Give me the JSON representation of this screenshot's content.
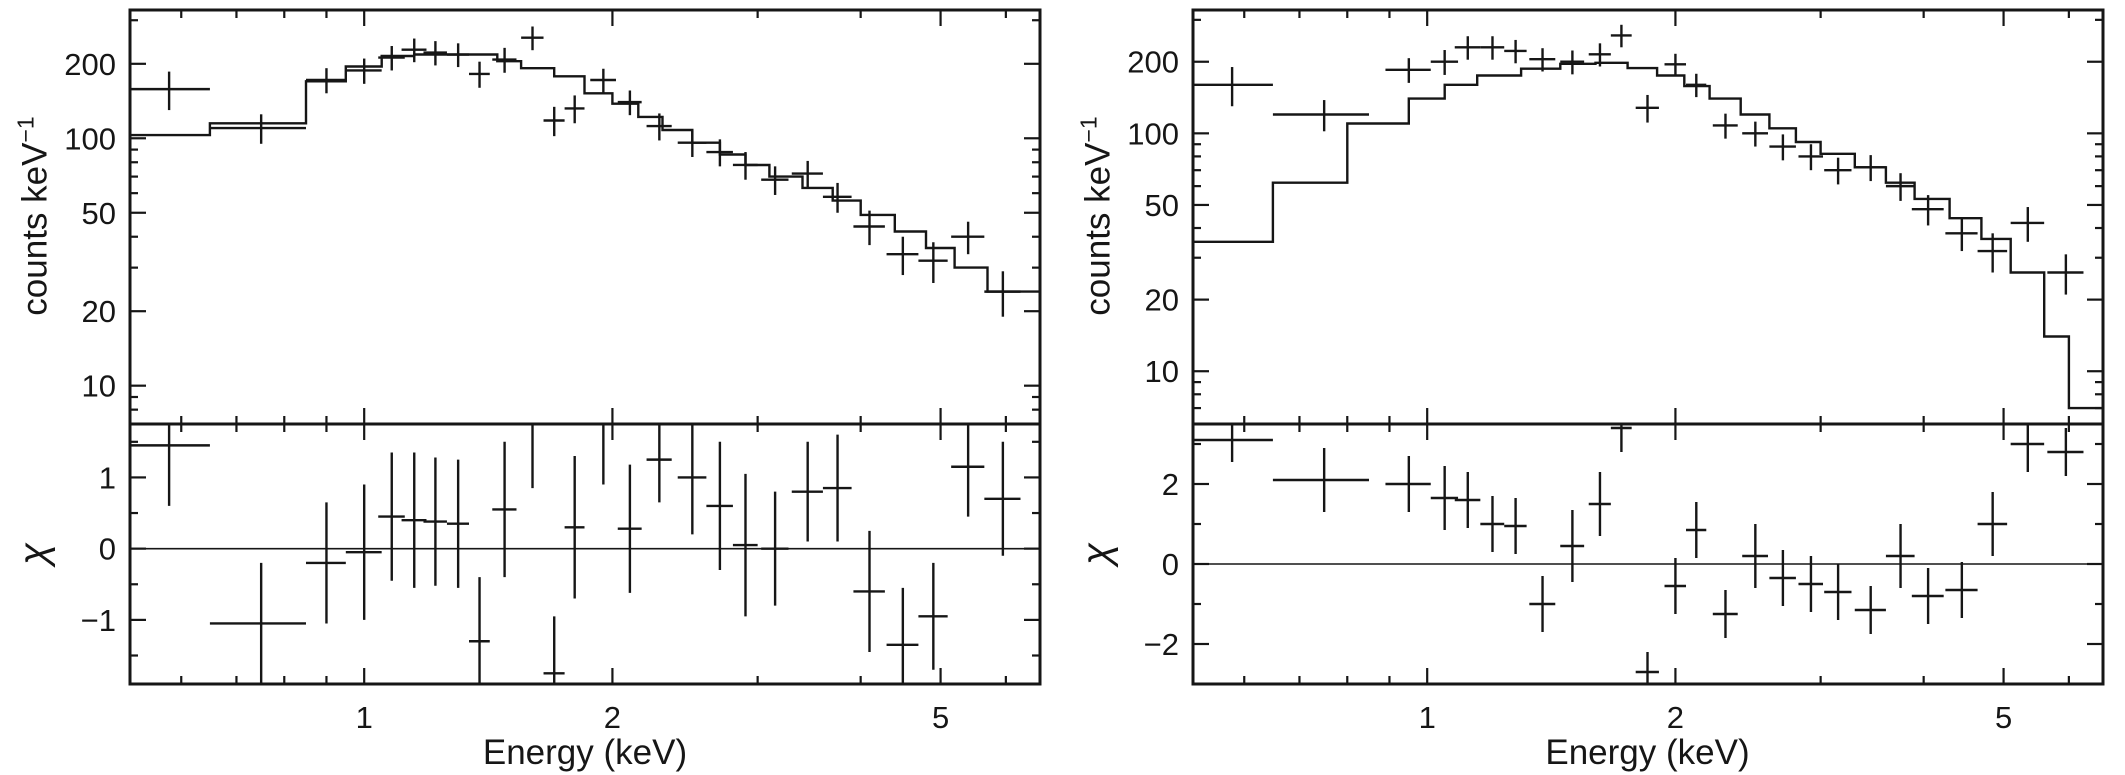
{
  "figure": {
    "background": "#ffffff",
    "ink_color": "#161616"
  },
  "chart_data": [
    {
      "id": "left-panel",
      "type": "line",
      "title": "",
      "xlabel": "Energy (keV)",
      "xscale": "log",
      "xlim": [
        0.52,
        6.6
      ],
      "xticks": [
        1,
        2,
        5
      ],
      "spectrum": {
        "ylabel_base": "counts keV",
        "ylabel_sup": "−1",
        "yscale": "log",
        "ylim": [
          7,
          330
        ],
        "yticks": [
          10,
          20,
          50,
          100,
          200
        ],
        "model": {
          "edges": [
            0.52,
            0.65,
            0.85,
            0.95,
            1.05,
            1.15,
            1.45,
            1.55,
            1.7,
            1.85,
            2.0,
            2.15,
            2.3,
            2.5,
            2.7,
            2.9,
            3.1,
            3.4,
            3.7,
            4.0,
            4.4,
            4.8,
            5.2,
            5.7,
            6.6
          ],
          "counts": [
            103,
            115,
            170,
            195,
            215,
            218,
            205,
            192,
            178,
            152,
            138,
            122,
            108,
            96,
            86,
            78,
            70,
            63,
            56,
            49,
            42,
            36,
            30,
            24
          ]
        },
        "points": [
          {
            "x": 0.58,
            "xw": 0.07,
            "y": 158,
            "ye": 28
          },
          {
            "x": 0.75,
            "xw": 0.1,
            "y": 110,
            "ye": 15
          },
          {
            "x": 0.9,
            "xw": 0.05,
            "y": 172,
            "ye": 20
          },
          {
            "x": 1.0,
            "xw": 0.05,
            "y": 188,
            "ye": 22
          },
          {
            "x": 1.08,
            "xw": 0.04,
            "y": 212,
            "ye": 24
          },
          {
            "x": 1.15,
            "xw": 0.04,
            "y": 228,
            "ye": 25
          },
          {
            "x": 1.22,
            "xw": 0.04,
            "y": 222,
            "ye": 25
          },
          {
            "x": 1.3,
            "xw": 0.04,
            "y": 218,
            "ye": 24
          },
          {
            "x": 1.38,
            "xw": 0.04,
            "y": 182,
            "ye": 22
          },
          {
            "x": 1.48,
            "xw": 0.05,
            "y": 208,
            "ye": 24
          },
          {
            "x": 1.6,
            "xw": 0.05,
            "y": 255,
            "ye": 28
          },
          {
            "x": 1.7,
            "xw": 0.05,
            "y": 118,
            "ye": 16
          },
          {
            "x": 1.8,
            "xw": 0.05,
            "y": 132,
            "ye": 17
          },
          {
            "x": 1.95,
            "xw": 0.07,
            "y": 172,
            "ye": 19
          },
          {
            "x": 2.1,
            "xw": 0.07,
            "y": 140,
            "ye": 16
          },
          {
            "x": 2.28,
            "xw": 0.08,
            "y": 112,
            "ye": 14
          },
          {
            "x": 2.5,
            "xw": 0.1,
            "y": 96,
            "ye": 12
          },
          {
            "x": 2.7,
            "xw": 0.1,
            "y": 88,
            "ye": 11
          },
          {
            "x": 2.9,
            "xw": 0.1,
            "y": 78,
            "ye": 10
          },
          {
            "x": 3.15,
            "xw": 0.12,
            "y": 68,
            "ye": 9
          },
          {
            "x": 3.45,
            "xw": 0.15,
            "y": 72,
            "ye": 9
          },
          {
            "x": 3.75,
            "xw": 0.15,
            "y": 58,
            "ye": 8
          },
          {
            "x": 4.1,
            "xw": 0.18,
            "y": 44,
            "ye": 7
          },
          {
            "x": 4.5,
            "xw": 0.2,
            "y": 34,
            "ye": 6
          },
          {
            "x": 4.9,
            "xw": 0.2,
            "y": 32,
            "ye": 6
          },
          {
            "x": 5.4,
            "xw": 0.25,
            "y": 40,
            "ye": 6
          },
          {
            "x": 5.95,
            "xw": 0.3,
            "y": 24,
            "ye": 5
          }
        ]
      },
      "residuals": {
        "ylabel": "χ",
        "yscale": "linear",
        "ylim": [
          -1.9,
          1.75
        ],
        "yticks": [
          -1,
          0,
          1
        ],
        "yminor": [
          -1.5,
          -0.5,
          0.5,
          1.5
        ],
        "points": [
          {
            "x": 0.58,
            "xw": 0.07,
            "y": 1.45,
            "ye": 0.85
          },
          {
            "x": 0.75,
            "xw": 0.1,
            "y": -1.05,
            "ye": 0.85
          },
          {
            "x": 0.9,
            "xw": 0.05,
            "y": -0.2,
            "ye": 0.85
          },
          {
            "x": 1.0,
            "xw": 0.05,
            "y": -0.05,
            "ye": 0.95
          },
          {
            "x": 1.08,
            "xw": 0.04,
            "y": 0.45,
            "ye": 0.9
          },
          {
            "x": 1.15,
            "xw": 0.04,
            "y": 0.4,
            "ye": 0.95
          },
          {
            "x": 1.22,
            "xw": 0.04,
            "y": 0.38,
            "ye": 0.9
          },
          {
            "x": 1.3,
            "xw": 0.04,
            "y": 0.35,
            "ye": 0.9
          },
          {
            "x": 1.38,
            "xw": 0.04,
            "y": -1.3,
            "ye": 0.9
          },
          {
            "x": 1.48,
            "xw": 0.05,
            "y": 0.55,
            "ye": 0.95
          },
          {
            "x": 1.6,
            "xw": 0.05,
            "y": 1.75,
            "ye": 0.9
          },
          {
            "x": 1.7,
            "xw": 0.05,
            "y": -1.75,
            "ye": 0.8
          },
          {
            "x": 1.8,
            "xw": 0.05,
            "y": 0.3,
            "ye": 1.0
          },
          {
            "x": 1.95,
            "xw": 0.07,
            "y": 1.75,
            "ye": 0.85
          },
          {
            "x": 2.1,
            "xw": 0.07,
            "y": 0.28,
            "ye": 0.9
          },
          {
            "x": 2.28,
            "xw": 0.08,
            "y": 1.25,
            "ye": 0.6
          },
          {
            "x": 2.5,
            "xw": 0.1,
            "y": 1.0,
            "ye": 0.8
          },
          {
            "x": 2.7,
            "xw": 0.1,
            "y": 0.6,
            "ye": 0.9
          },
          {
            "x": 2.9,
            "xw": 0.1,
            "y": 0.05,
            "ye": 1.0
          },
          {
            "x": 3.15,
            "xw": 0.12,
            "y": 0.0,
            "ye": 0.8
          },
          {
            "x": 3.45,
            "xw": 0.15,
            "y": 0.8,
            "ye": 0.7
          },
          {
            "x": 3.75,
            "xw": 0.15,
            "y": 0.85,
            "ye": 0.75
          },
          {
            "x": 4.1,
            "xw": 0.18,
            "y": -0.6,
            "ye": 0.85
          },
          {
            "x": 4.5,
            "xw": 0.2,
            "y": -1.35,
            "ye": 0.8
          },
          {
            "x": 4.9,
            "xw": 0.2,
            "y": -0.95,
            "ye": 0.75
          },
          {
            "x": 5.4,
            "xw": 0.25,
            "y": 1.15,
            "ye": 0.7
          },
          {
            "x": 5.95,
            "xw": 0.3,
            "y": 0.7,
            "ye": 0.8
          }
        ]
      }
    },
    {
      "id": "right-panel",
      "type": "line",
      "title": "",
      "xlabel": "Energy (keV)",
      "xscale": "log",
      "xlim": [
        0.52,
        6.6
      ],
      "xticks": [
        1,
        2,
        5
      ],
      "spectrum": {
        "ylabel_base": "counts keV",
        "ylabel_sup": "−1",
        "yscale": "log",
        "ylim": [
          6,
          330
        ],
        "yticks": [
          10,
          20,
          50,
          100,
          200
        ],
        "model": {
          "edges": [
            0.52,
            0.65,
            0.8,
            0.95,
            1.05,
            1.15,
            1.3,
            1.45,
            1.6,
            1.75,
            1.9,
            2.05,
            2.2,
            2.4,
            2.6,
            2.8,
            3.0,
            3.3,
            3.6,
            3.9,
            4.3,
            4.7,
            5.1,
            5.6,
            6.0,
            6.6
          ],
          "counts": [
            35,
            62,
            110,
            140,
            160,
            175,
            187,
            196,
            198,
            188,
            175,
            158,
            140,
            120,
            105,
            92,
            82,
            72,
            62,
            53,
            44,
            36,
            26,
            14,
            7
          ]
        },
        "points": [
          {
            "x": 0.58,
            "xw": 0.07,
            "y": 160,
            "ye": 30
          },
          {
            "x": 0.75,
            "xw": 0.1,
            "y": 120,
            "ye": 18
          },
          {
            "x": 0.95,
            "xw": 0.06,
            "y": 185,
            "ye": 22
          },
          {
            "x": 1.05,
            "xw": 0.04,
            "y": 200,
            "ye": 24
          },
          {
            "x": 1.12,
            "xw": 0.04,
            "y": 230,
            "ye": 26
          },
          {
            "x": 1.2,
            "xw": 0.04,
            "y": 230,
            "ye": 26
          },
          {
            "x": 1.28,
            "xw": 0.04,
            "y": 222,
            "ye": 25
          },
          {
            "x": 1.38,
            "xw": 0.05,
            "y": 205,
            "ye": 23
          },
          {
            "x": 1.5,
            "xw": 0.05,
            "y": 200,
            "ye": 23
          },
          {
            "x": 1.62,
            "xw": 0.05,
            "y": 215,
            "ye": 24
          },
          {
            "x": 1.72,
            "xw": 0.05,
            "y": 258,
            "ye": 28
          },
          {
            "x": 1.85,
            "xw": 0.06,
            "y": 128,
            "ye": 17
          },
          {
            "x": 2.0,
            "xw": 0.06,
            "y": 195,
            "ye": 21
          },
          {
            "x": 2.12,
            "xw": 0.06,
            "y": 160,
            "ye": 18
          },
          {
            "x": 2.3,
            "xw": 0.08,
            "y": 108,
            "ye": 13
          },
          {
            "x": 2.5,
            "xw": 0.09,
            "y": 100,
            "ye": 12
          },
          {
            "x": 2.7,
            "xw": 0.1,
            "y": 88,
            "ye": 11
          },
          {
            "x": 2.92,
            "xw": 0.1,
            "y": 80,
            "ye": 10
          },
          {
            "x": 3.15,
            "xw": 0.12,
            "y": 70,
            "ye": 9
          },
          {
            "x": 3.45,
            "xw": 0.15,
            "y": 72,
            "ye": 9
          },
          {
            "x": 3.75,
            "xw": 0.15,
            "y": 60,
            "ye": 8
          },
          {
            "x": 4.05,
            "xw": 0.18,
            "y": 48,
            "ye": 7
          },
          {
            "x": 4.45,
            "xw": 0.2,
            "y": 38,
            "ye": 6
          },
          {
            "x": 4.85,
            "xw": 0.2,
            "y": 32,
            "ye": 6
          },
          {
            "x": 5.35,
            "xw": 0.25,
            "y": 42,
            "ye": 7
          },
          {
            "x": 5.95,
            "xw": 0.3,
            "y": 26,
            "ye": 5
          }
        ]
      },
      "residuals": {
        "ylabel": "χ",
        "yscale": "linear",
        "ylim": [
          -3.0,
          3.5
        ],
        "yticks": [
          -2,
          0,
          2
        ],
        "yminor": [
          -3,
          -1,
          1,
          3
        ],
        "points": [
          {
            "x": 0.58,
            "xw": 0.07,
            "y": 3.1,
            "ye": 0.55
          },
          {
            "x": 0.75,
            "xw": 0.1,
            "y": 2.1,
            "ye": 0.8
          },
          {
            "x": 0.95,
            "xw": 0.06,
            "y": 2.0,
            "ye": 0.7
          },
          {
            "x": 1.05,
            "xw": 0.04,
            "y": 1.65,
            "ye": 0.8
          },
          {
            "x": 1.12,
            "xw": 0.04,
            "y": 1.6,
            "ye": 0.7
          },
          {
            "x": 1.2,
            "xw": 0.04,
            "y": 1.0,
            "ye": 0.7
          },
          {
            "x": 1.28,
            "xw": 0.04,
            "y": 0.95,
            "ye": 0.7
          },
          {
            "x": 1.38,
            "xw": 0.05,
            "y": -1.0,
            "ye": 0.7
          },
          {
            "x": 1.5,
            "xw": 0.05,
            "y": 0.45,
            "ye": 0.9
          },
          {
            "x": 1.62,
            "xw": 0.05,
            "y": 1.5,
            "ye": 0.8
          },
          {
            "x": 1.72,
            "xw": 0.05,
            "y": 3.4,
            "ye": 0.6
          },
          {
            "x": 1.85,
            "xw": 0.06,
            "y": -2.7,
            "ye": 0.5
          },
          {
            "x": 2.0,
            "xw": 0.06,
            "y": -0.55,
            "ye": 0.7
          },
          {
            "x": 2.12,
            "xw": 0.06,
            "y": 0.85,
            "ye": 0.7
          },
          {
            "x": 2.3,
            "xw": 0.08,
            "y": -1.25,
            "ye": 0.6
          },
          {
            "x": 2.5,
            "xw": 0.09,
            "y": 0.2,
            "ye": 0.8
          },
          {
            "x": 2.7,
            "xw": 0.1,
            "y": -0.35,
            "ye": 0.7
          },
          {
            "x": 2.92,
            "xw": 0.1,
            "y": -0.5,
            "ye": 0.7
          },
          {
            "x": 3.15,
            "xw": 0.12,
            "y": -0.7,
            "ye": 0.7
          },
          {
            "x": 3.45,
            "xw": 0.15,
            "y": -1.15,
            "ye": 0.6
          },
          {
            "x": 3.75,
            "xw": 0.15,
            "y": 0.2,
            "ye": 0.8
          },
          {
            "x": 4.05,
            "xw": 0.18,
            "y": -0.8,
            "ye": 0.7
          },
          {
            "x": 4.45,
            "xw": 0.2,
            "y": -0.65,
            "ye": 0.7
          },
          {
            "x": 4.85,
            "xw": 0.2,
            "y": 1.0,
            "ye": 0.8
          },
          {
            "x": 5.35,
            "xw": 0.25,
            "y": 3.0,
            "ye": 0.7
          },
          {
            "x": 5.95,
            "xw": 0.3,
            "y": 2.8,
            "ye": 0.6
          }
        ]
      }
    }
  ]
}
